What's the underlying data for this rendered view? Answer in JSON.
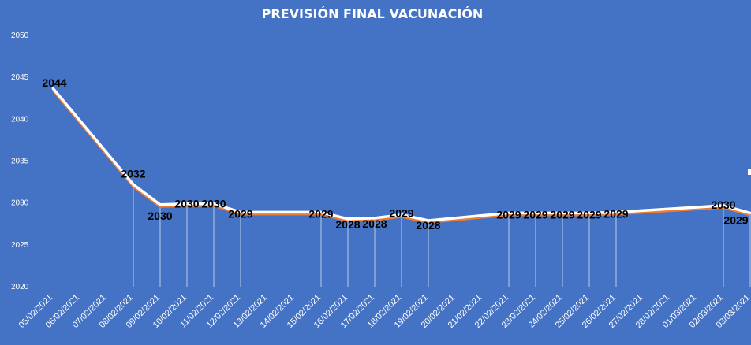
{
  "chart_data": {
    "type": "line",
    "title": "PREVISIÓN FINAL VACUNACIÓN",
    "xlabel": "",
    "ylabel": "",
    "ylim": [
      2020,
      2050
    ],
    "yticks": [
      2020,
      2025,
      2030,
      2035,
      2040,
      2045,
      2050
    ],
    "grid": false,
    "legend": "none",
    "colors": {
      "background": "#4472c4",
      "line": "#ffffff",
      "shadow_line": "#ed7d31",
      "drop_line": "#ffffff",
      "label": "#000000"
    },
    "categories": [
      "05/02/2021",
      "06/02/2021",
      "07/02/2021",
      "08/02/2021",
      "09/02/2021",
      "10/02/2021",
      "11/02/2021",
      "12/02/2021",
      "13/02/2021",
      "14/02/2021",
      "15/02/2021",
      "16/02/2021",
      "17/02/2021",
      "18/02/2021",
      "19/02/2021",
      "20/02/2021",
      "21/02/2021",
      "22/02/2021",
      "23/02/2021",
      "24/02/2021",
      "25/02/2021",
      "26/02/2021",
      "27/02/2021",
      "28/02/2021",
      "01/03/2021",
      "02/03/2021",
      "03/03/2021"
    ],
    "series": [
      {
        "values": [
          2044,
          null,
          null,
          2032,
          2030,
          2030,
          2030,
          2029,
          null,
          null,
          2029,
          2028,
          2028,
          2029,
          2028,
          null,
          null,
          2029,
          2029,
          2029,
          2029,
          2029,
          null,
          null,
          null,
          2030,
          2029
        ],
        "plot_values": [
          2043.7,
          null,
          null,
          2032.2,
          2029.8,
          2029.9,
          2029.9,
          2028.9,
          null,
          null,
          2028.9,
          2028.1,
          2028.2,
          2028.6,
          2027.9,
          null,
          null,
          2028.8,
          2028.8,
          2028.8,
          2028.8,
          2028.9,
          null,
          null,
          null,
          2029.7,
          2028.8
        ],
        "labels": [
          "2044",
          "",
          "",
          "2032",
          "2030",
          "2030",
          "2030",
          "2029",
          "",
          "",
          "2029",
          "2028",
          "2028",
          "2029",
          "2028",
          "",
          "",
          "2029",
          "2029",
          "2029",
          "2029",
          "2029",
          "",
          "",
          "",
          "2030",
          "2029"
        ]
      }
    ]
  }
}
